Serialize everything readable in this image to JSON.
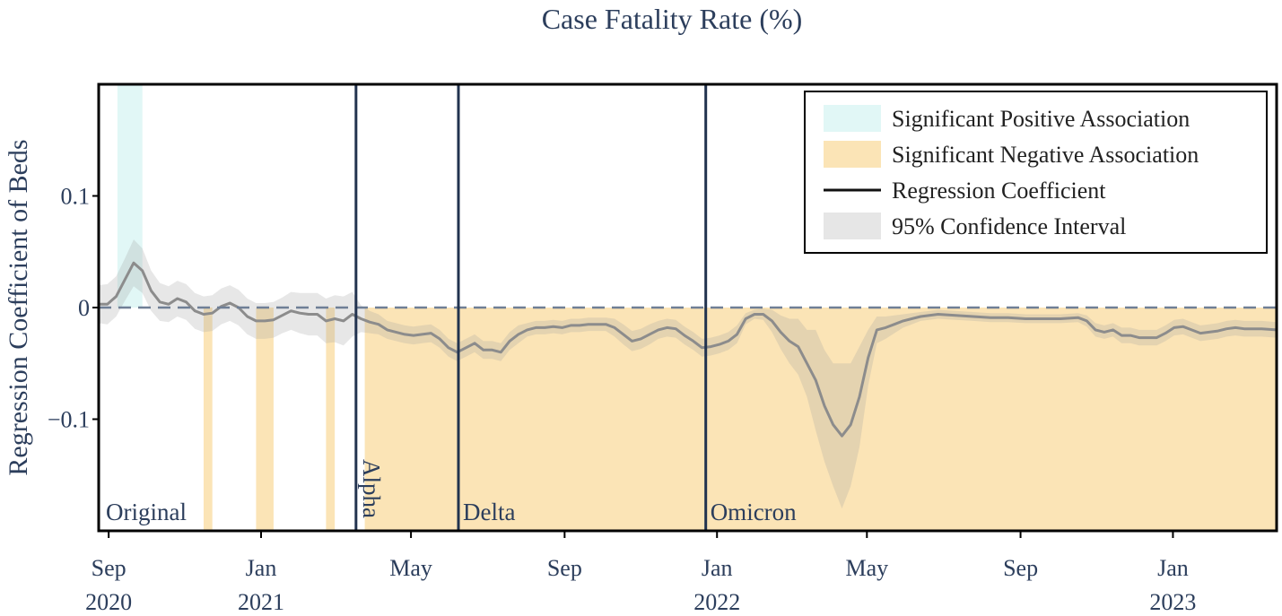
{
  "chart_data": {
    "type": "line",
    "title": "Case Fatality Rate (%)",
    "xlabel": "",
    "ylabel": "Regression Coefficient of Beds",
    "y_ticks": [
      {
        "value": 0.1,
        "label": "0.1"
      },
      {
        "value": 0,
        "label": "0"
      },
      {
        "value": -0.1,
        "label": "−0.1"
      }
    ],
    "x_ticks": [
      {
        "date": "2020-09-01",
        "month": "Sep",
        "year": "2020"
      },
      {
        "date": "2021-01-01",
        "month": "Jan",
        "year": "2021"
      },
      {
        "date": "2021-05-01",
        "month": "May",
        "year": ""
      },
      {
        "date": "2021-09-01",
        "month": "Sep",
        "year": ""
      },
      {
        "date": "2022-01-01",
        "month": "Jan",
        "year": "2022"
      },
      {
        "date": "2022-05-01",
        "month": "May",
        "year": ""
      },
      {
        "date": "2022-09-01",
        "month": "Sep",
        "year": ""
      },
      {
        "date": "2023-01-01",
        "month": "Jan",
        "year": "2023"
      }
    ],
    "xlim": [
      "2020-08-24",
      "2023-03-25"
    ],
    "ylim": [
      -0.2,
      0.2
    ],
    "variant_lines": [
      {
        "date": "2021-03-18",
        "label": "Alpha",
        "rotated": true
      },
      {
        "date": "2021-06-08",
        "label": "Delta",
        "rotated": false
      },
      {
        "date": "2021-12-23",
        "label": "Omicron",
        "rotated": false
      }
    ],
    "first_period_label": "Original",
    "zero_line": true,
    "legend": {
      "position": "top-right",
      "entries": [
        {
          "label": "Significant Positive Association",
          "type": "patch",
          "color": "#e1f7f6"
        },
        {
          "label": "Significant Negative Association",
          "type": "patch",
          "color": "#fbe4b6"
        },
        {
          "label": "Regression Coefficient",
          "type": "line",
          "color": "#111111"
        },
        {
          "label": "95% Confidence Interval",
          "type": "patch",
          "color": "#e6e6e6"
        }
      ]
    },
    "positive_intervals": [
      [
        "2020-09-08",
        "2020-09-28"
      ]
    ],
    "negative_intervals": [
      [
        "2020-11-16",
        "2020-11-23"
      ],
      [
        "2020-12-28",
        "2021-01-11"
      ],
      [
        "2021-02-22",
        "2021-03-01"
      ],
      [
        "2021-03-25",
        "2023-03-25"
      ]
    ],
    "series": [
      {
        "x": [
          "2020-08-24",
          "2020-08-31",
          "2020-09-07",
          "2020-09-14",
          "2020-09-21",
          "2020-09-28",
          "2020-10-05",
          "2020-10-12",
          "2020-10-19",
          "2020-10-26",
          "2020-11-02",
          "2020-11-09",
          "2020-11-16",
          "2020-11-23",
          "2020-11-30",
          "2020-12-07",
          "2020-12-14",
          "2020-12-21",
          "2020-12-28",
          "2021-01-04",
          "2021-01-11",
          "2021-01-18",
          "2021-01-25",
          "2021-02-01",
          "2021-02-08",
          "2021-02-15",
          "2021-02-22",
          "2021-03-01",
          "2021-03-08",
          "2021-03-15",
          "2021-03-22",
          "2021-03-29",
          "2021-04-05",
          "2021-04-12",
          "2021-04-19",
          "2021-04-26",
          "2021-05-03",
          "2021-05-10",
          "2021-05-17",
          "2021-05-24",
          "2021-05-31",
          "2021-06-07",
          "2021-06-14",
          "2021-06-21",
          "2021-06-28",
          "2021-07-05",
          "2021-07-12",
          "2021-07-19",
          "2021-07-26",
          "2021-08-02",
          "2021-08-09",
          "2021-08-16",
          "2021-08-23",
          "2021-08-30",
          "2021-09-06",
          "2021-09-13",
          "2021-09-20",
          "2021-09-27",
          "2021-10-04",
          "2021-10-11",
          "2021-10-18",
          "2021-10-25",
          "2021-11-01",
          "2021-11-08",
          "2021-11-15",
          "2021-11-22",
          "2021-11-29",
          "2021-12-06",
          "2021-12-13",
          "2021-12-20",
          "2021-12-27",
          "2022-01-03",
          "2022-01-10",
          "2022-01-17",
          "2022-01-24",
          "2022-01-31",
          "2022-02-07",
          "2022-02-14",
          "2022-02-21",
          "2022-02-28",
          "2022-03-07",
          "2022-03-14",
          "2022-03-21",
          "2022-03-28",
          "2022-04-04",
          "2022-04-11",
          "2022-04-18",
          "2022-04-25",
          "2022-05-02",
          "2022-05-09",
          "2022-05-16",
          "2022-05-23",
          "2022-05-30",
          "2022-06-13",
          "2022-06-27",
          "2022-07-11",
          "2022-07-25",
          "2022-08-08",
          "2022-08-22",
          "2022-09-05",
          "2022-09-19",
          "2022-10-03",
          "2022-10-17",
          "2022-10-24",
          "2022-10-31",
          "2022-11-07",
          "2022-11-14",
          "2022-11-21",
          "2022-11-28",
          "2022-12-05",
          "2022-12-12",
          "2022-12-19",
          "2022-12-26",
          "2023-01-02",
          "2023-01-09",
          "2023-01-16",
          "2023-01-23",
          "2023-01-30",
          "2023-02-06",
          "2023-02-13",
          "2023-02-20",
          "2023-02-27",
          "2023-03-06",
          "2023-03-13",
          "2023-03-25"
        ],
        "y": [
          0.003,
          0.003,
          0.01,
          0.025,
          0.04,
          0.033,
          0.015,
          0.005,
          0.003,
          0.008,
          0.005,
          -0.003,
          -0.006,
          -0.005,
          0.001,
          0.004,
          0.0,
          -0.008,
          -0.012,
          -0.012,
          -0.011,
          -0.007,
          -0.003,
          -0.005,
          -0.006,
          -0.006,
          -0.012,
          -0.01,
          -0.012,
          -0.006,
          -0.01,
          -0.013,
          -0.015,
          -0.02,
          -0.022,
          -0.024,
          -0.025,
          -0.024,
          -0.023,
          -0.028,
          -0.036,
          -0.04,
          -0.036,
          -0.032,
          -0.038,
          -0.038,
          -0.04,
          -0.03,
          -0.024,
          -0.02,
          -0.018,
          -0.018,
          -0.017,
          -0.018,
          -0.016,
          -0.016,
          -0.015,
          -0.015,
          -0.015,
          -0.018,
          -0.024,
          -0.03,
          -0.028,
          -0.024,
          -0.02,
          -0.018,
          -0.019,
          -0.025,
          -0.03,
          -0.036,
          -0.035,
          -0.033,
          -0.03,
          -0.024,
          -0.01,
          -0.006,
          -0.006,
          -0.012,
          -0.022,
          -0.03,
          -0.035,
          -0.05,
          -0.065,
          -0.088,
          -0.105,
          -0.115,
          -0.105,
          -0.08,
          -0.045,
          -0.02,
          -0.018,
          -0.015,
          -0.012,
          -0.008,
          -0.006,
          -0.007,
          -0.008,
          -0.009,
          -0.009,
          -0.01,
          -0.01,
          -0.01,
          -0.009,
          -0.012,
          -0.02,
          -0.022,
          -0.02,
          -0.025,
          -0.025,
          -0.027,
          -0.027,
          -0.027,
          -0.023,
          -0.018,
          -0.017,
          -0.02,
          -0.023,
          -0.022,
          -0.021,
          -0.019,
          -0.018,
          -0.019,
          -0.019,
          -0.019,
          -0.02
        ],
        "ci_half_width": [
          0.017,
          0.018,
          0.018,
          0.019,
          0.021,
          0.02,
          0.018,
          0.017,
          0.016,
          0.016,
          0.016,
          0.016,
          0.016,
          0.016,
          0.016,
          0.016,
          0.016,
          0.016,
          0.016,
          0.016,
          0.016,
          0.016,
          0.017,
          0.018,
          0.019,
          0.019,
          0.02,
          0.021,
          0.022,
          0.02,
          0.012,
          0.01,
          0.009,
          0.008,
          0.008,
          0.008,
          0.008,
          0.008,
          0.008,
          0.008,
          0.008,
          0.008,
          0.008,
          0.008,
          0.008,
          0.008,
          0.008,
          0.008,
          0.008,
          0.006,
          0.006,
          0.006,
          0.006,
          0.006,
          0.006,
          0.006,
          0.006,
          0.006,
          0.006,
          0.008,
          0.009,
          0.009,
          0.009,
          0.009,
          0.008,
          0.008,
          0.008,
          0.008,
          0.008,
          0.008,
          0.008,
          0.008,
          0.008,
          0.008,
          0.005,
          0.004,
          0.005,
          0.01,
          0.015,
          0.02,
          0.025,
          0.03,
          0.045,
          0.05,
          0.055,
          0.065,
          0.055,
          0.045,
          0.025,
          0.012,
          0.01,
          0.008,
          0.006,
          0.004,
          0.004,
          0.004,
          0.004,
          0.004,
          0.004,
          0.004,
          0.004,
          0.004,
          0.004,
          0.005,
          0.006,
          0.006,
          0.006,
          0.007,
          0.007,
          0.007,
          0.007,
          0.007,
          0.007,
          0.007,
          0.007,
          0.007,
          0.007,
          0.007,
          0.007,
          0.007,
          0.007,
          0.007,
          0.007,
          0.007,
          0.007
        ]
      }
    ]
  }
}
